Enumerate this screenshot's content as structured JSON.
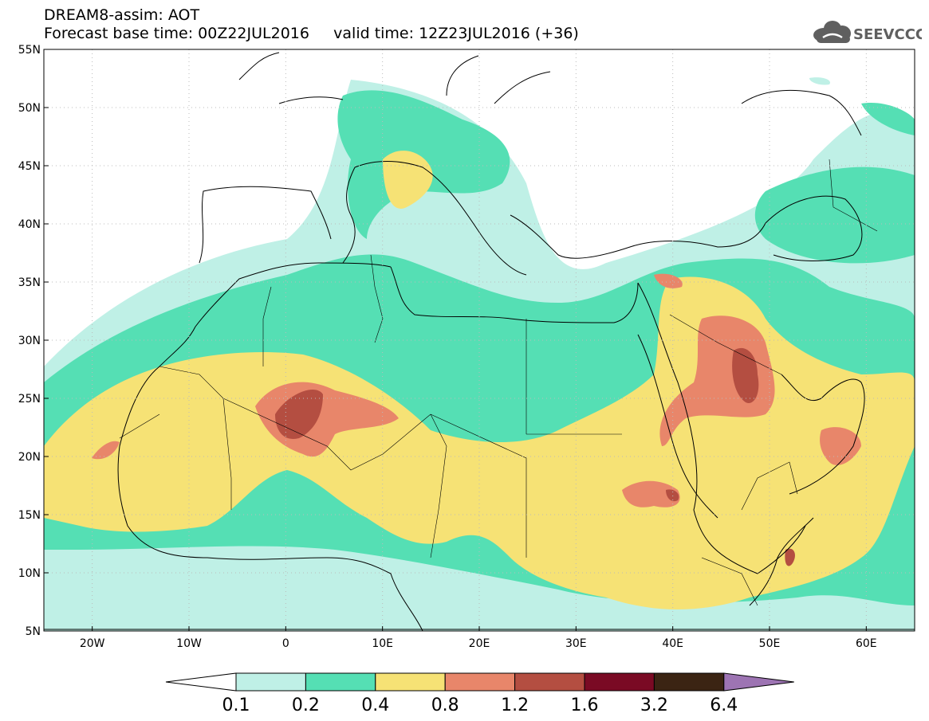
{
  "header": {
    "title_line1": "DREAM8-assim: AOT",
    "title_line2": "Forecast base time: 00Z22JUL2016     valid time: 12Z23JUL2016 (+36)",
    "logo_text": "SEEVCCC"
  },
  "map": {
    "projection": "equirectangular",
    "lon_range": [
      -25,
      65
    ],
    "lat_range": [
      5,
      55
    ],
    "lat_labels": [
      "55N",
      "50N",
      "45N",
      "40N",
      "35N",
      "30N",
      "25N",
      "20N",
      "15N",
      "10N",
      "5N"
    ],
    "lon_labels": [
      "20W",
      "10W",
      "0",
      "10E",
      "20E",
      "30E",
      "40E",
      "50E",
      "60E"
    ]
  },
  "colorbar": {
    "labels": [
      "0.1",
      "0.2",
      "0.4",
      "0.8",
      "1.2",
      "1.6",
      "3.2",
      "6.4"
    ],
    "colors": [
      "#bff0e6",
      "#55dfb4",
      "#f6e275",
      "#e8866a",
      "#b44e41",
      "#7a0a24",
      "#3b2413",
      "#9d74b3"
    ]
  },
  "colors": {
    "land_bg": "#ffffff",
    "coast": "#000000",
    "grid": "#bbbbbb"
  }
}
